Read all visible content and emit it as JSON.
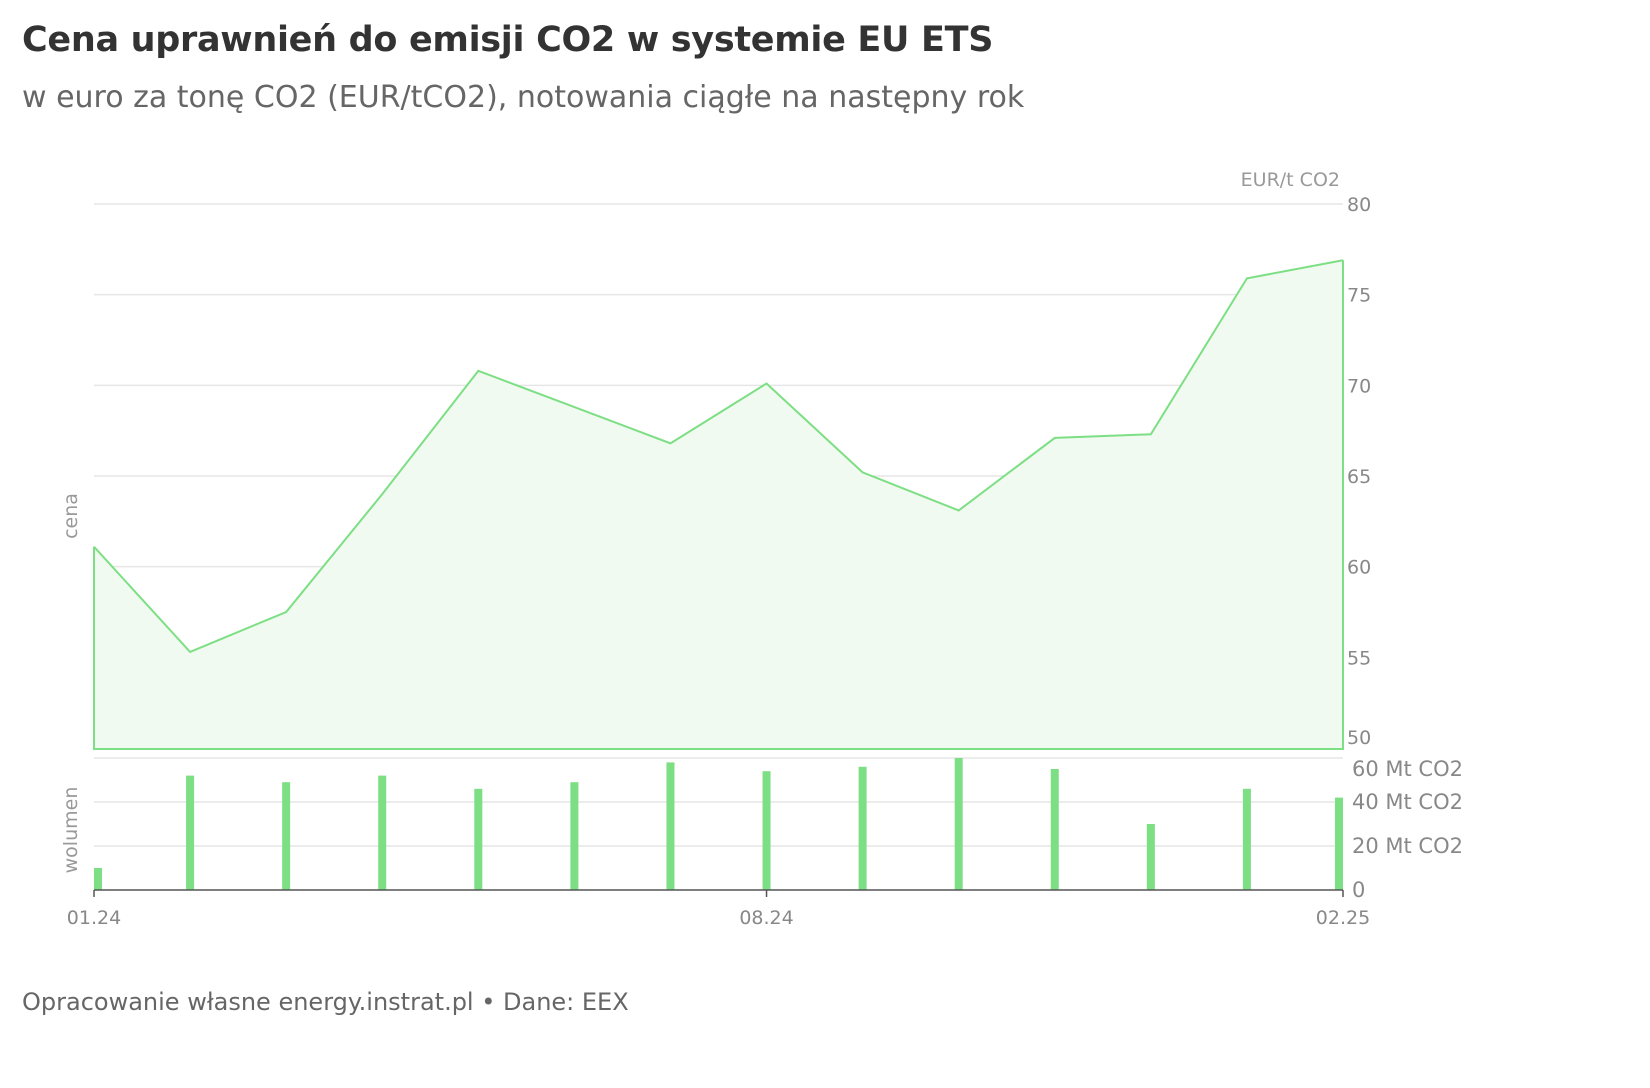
{
  "title": "Cena uprawnień do emisji CO2 w systemie EU ETS",
  "subtitle": "w euro za tonę CO2 (EUR/tCO2), notowania ciągłe na następny rok",
  "footer": "Opracowanie własne energy.instrat.pl • Dane: EEX",
  "chart_data": [
    {
      "type": "area",
      "name": "cena",
      "ylabel": "cena",
      "unit_label": "EUR/t CO2",
      "x": [
        "01.24",
        "02.24",
        "03.24",
        "04.24",
        "05.24",
        "06.24",
        "07.24",
        "08.24",
        "09.24",
        "10.24",
        "11.24",
        "12.24",
        "01.25",
        "02.25"
      ],
      "values": [
        61.1,
        55.3,
        57.5,
        64.0,
        70.8,
        68.8,
        66.8,
        70.1,
        65.2,
        63.1,
        67.1,
        67.3,
        75.9,
        76.9
      ],
      "ylim": [
        50,
        80
      ],
      "yticks": [
        "50",
        "55",
        "60",
        "65",
        "70",
        "75",
        "80"
      ],
      "grid": true,
      "color": "#7ddf84"
    },
    {
      "type": "bar",
      "name": "wolumen",
      "ylabel": "wolumen",
      "x": [
        "01.24",
        "02.24",
        "03.24",
        "04.24",
        "05.24",
        "06.24",
        "07.24",
        "08.24",
        "09.24",
        "10.24",
        "11.24",
        "12.24",
        "01.25",
        "02.25"
      ],
      "values": [
        10,
        52,
        49,
        52,
        46,
        49,
        58,
        54,
        56,
        60,
        55,
        30,
        46,
        42
      ],
      "ylim": [
        0,
        60
      ],
      "yticks": [
        "0",
        "20 Mt CO2",
        "40 Mt CO2",
        "60 Mt CO2"
      ],
      "grid": true,
      "color": "#7ddf84"
    }
  ],
  "xticks": [
    "01.24",
    "08.24",
    "02.25"
  ]
}
